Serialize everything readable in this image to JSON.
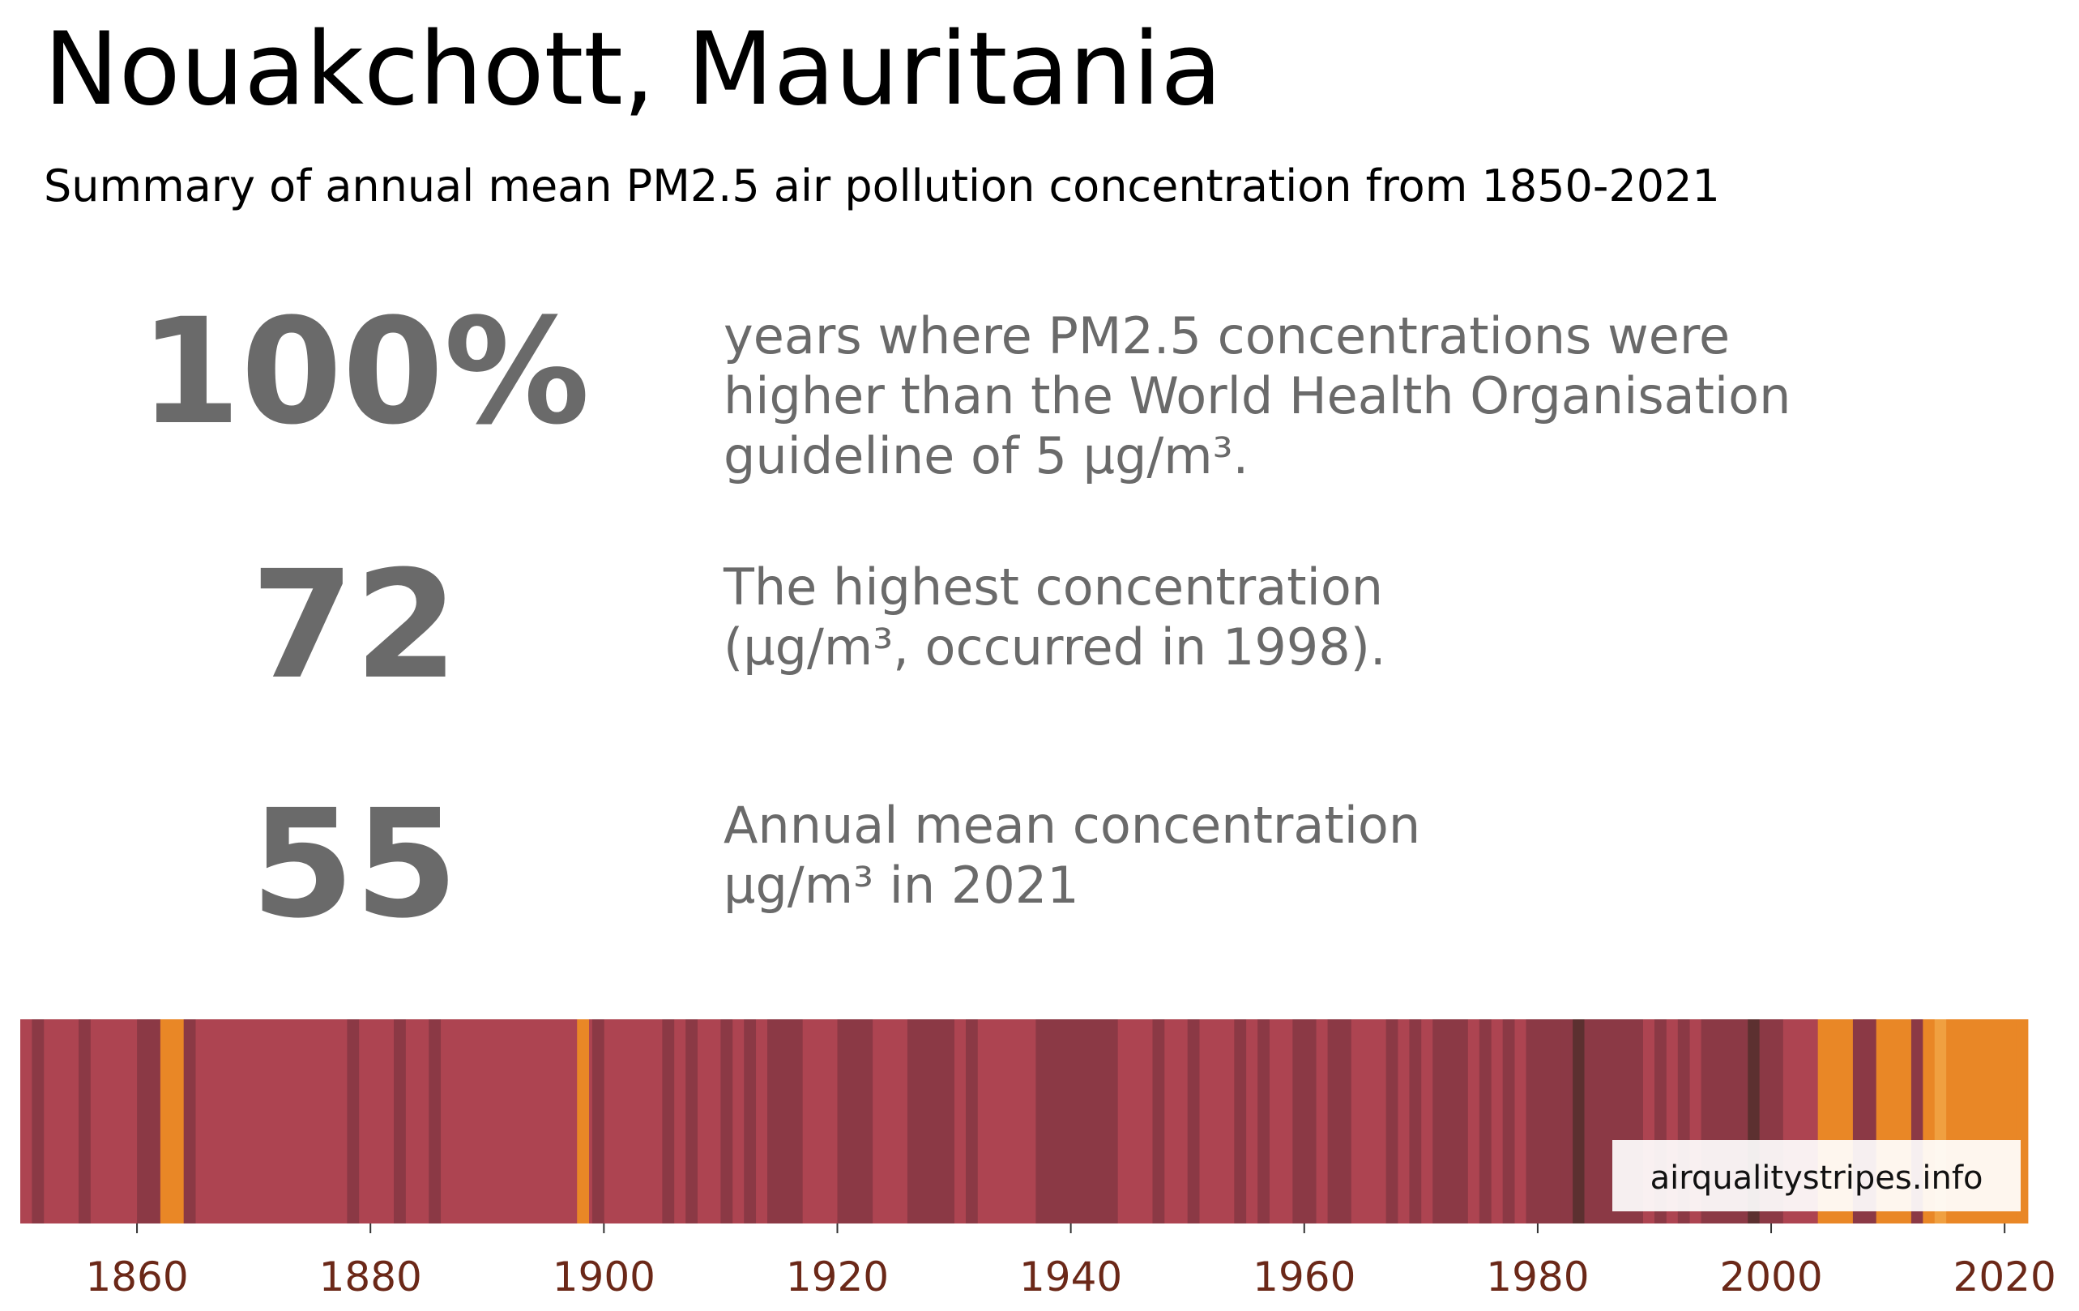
{
  "header": {
    "title": "Nouakchott, Mauritania",
    "subtitle": "Summary of annual mean PM2.5 air pollution concentration from 1850-2021"
  },
  "stats": [
    {
      "value": "100%",
      "lines": [
        "years where PM2.5 concentrations were",
        "higher than the World Health Organisation",
        "guideline of 5 µg/m³."
      ]
    },
    {
      "value": "72",
      "lines": [
        "The highest concentration",
        "(µg/m³, occurred in 1998)."
      ]
    },
    {
      "value": "55",
      "lines": [
        "Annual mean concentration",
        "µg/m³ in 2021"
      ]
    }
  ],
  "watermark": "airqualitystripes.info",
  "chart_data": {
    "type": "heatmap",
    "x_range": [
      1850,
      2022
    ],
    "x_ticks": [
      1860,
      1880,
      1900,
      1920,
      1940,
      1960,
      1980,
      2000,
      2020
    ],
    "colors": {
      "base": "#ad4451",
      "dark": "#8b3945",
      "darker": "#5c3030",
      "orange": "#e98726",
      "light_orange": "#f0a040",
      "tick_label": "#6b2818"
    },
    "stripes": [
      {
        "start": 1851,
        "end": 1852,
        "color": "dark"
      },
      {
        "start": 1855,
        "end": 1856,
        "color": "dark"
      },
      {
        "start": 1860,
        "end": 1862,
        "color": "dark"
      },
      {
        "start": 1862,
        "end": 1864,
        "color": "orange"
      },
      {
        "start": 1864,
        "end": 1865,
        "color": "dark"
      },
      {
        "start": 1878,
        "end": 1879,
        "color": "dark"
      },
      {
        "start": 1882,
        "end": 1883,
        "color": "dark"
      },
      {
        "start": 1885,
        "end": 1886,
        "color": "dark"
      },
      {
        "start": 1897.7,
        "end": 1898.7,
        "color": "orange"
      },
      {
        "start": 1899,
        "end": 1900,
        "color": "dark"
      },
      {
        "start": 1905,
        "end": 1906,
        "color": "dark"
      },
      {
        "start": 1907,
        "end": 1908,
        "color": "dark"
      },
      {
        "start": 1910,
        "end": 1911,
        "color": "dark"
      },
      {
        "start": 1912,
        "end": 1913,
        "color": "dark"
      },
      {
        "start": 1914,
        "end": 1917,
        "color": "dark"
      },
      {
        "start": 1920,
        "end": 1923,
        "color": "dark"
      },
      {
        "start": 1926,
        "end": 1930,
        "color": "dark"
      },
      {
        "start": 1931,
        "end": 1932,
        "color": "dark"
      },
      {
        "start": 1937,
        "end": 1944,
        "color": "dark"
      },
      {
        "start": 1947,
        "end": 1948,
        "color": "dark"
      },
      {
        "start": 1950,
        "end": 1951,
        "color": "dark"
      },
      {
        "start": 1954,
        "end": 1955,
        "color": "dark"
      },
      {
        "start": 1956,
        "end": 1957,
        "color": "dark"
      },
      {
        "start": 1959,
        "end": 1961,
        "color": "dark"
      },
      {
        "start": 1962,
        "end": 1964,
        "color": "dark"
      },
      {
        "start": 1967,
        "end": 1968,
        "color": "dark"
      },
      {
        "start": 1969,
        "end": 1970,
        "color": "dark"
      },
      {
        "start": 1971,
        "end": 1974,
        "color": "dark"
      },
      {
        "start": 1975,
        "end": 1976,
        "color": "dark"
      },
      {
        "start": 1977,
        "end": 1978,
        "color": "dark"
      },
      {
        "start": 1979,
        "end": 1982,
        "color": "dark"
      },
      {
        "start": 1982,
        "end": 1983,
        "color": "dark"
      },
      {
        "start": 1983,
        "end": 1984,
        "color": "darker"
      },
      {
        "start": 1984,
        "end": 1989,
        "color": "dark"
      },
      {
        "start": 1990,
        "end": 1991,
        "color": "dark"
      },
      {
        "start": 1992,
        "end": 1993,
        "color": "dark"
      },
      {
        "start": 1994,
        "end": 1998,
        "color": "dark"
      },
      {
        "start": 1998,
        "end": 1999,
        "color": "darker"
      },
      {
        "start": 1999,
        "end": 2001,
        "color": "dark"
      },
      {
        "start": 2004,
        "end": 2007,
        "color": "orange"
      },
      {
        "start": 2007,
        "end": 2009,
        "color": "dark"
      },
      {
        "start": 2009,
        "end": 2012,
        "color": "orange"
      },
      {
        "start": 2012,
        "end": 2013,
        "color": "dark"
      },
      {
        "start": 2013,
        "end": 2014,
        "color": "orange"
      },
      {
        "start": 2014,
        "end": 2015,
        "color": "light_orange"
      },
      {
        "start": 2015,
        "end": 2021,
        "color": "orange"
      },
      {
        "start": 2021,
        "end": 2022,
        "color": "orange"
      }
    ]
  }
}
